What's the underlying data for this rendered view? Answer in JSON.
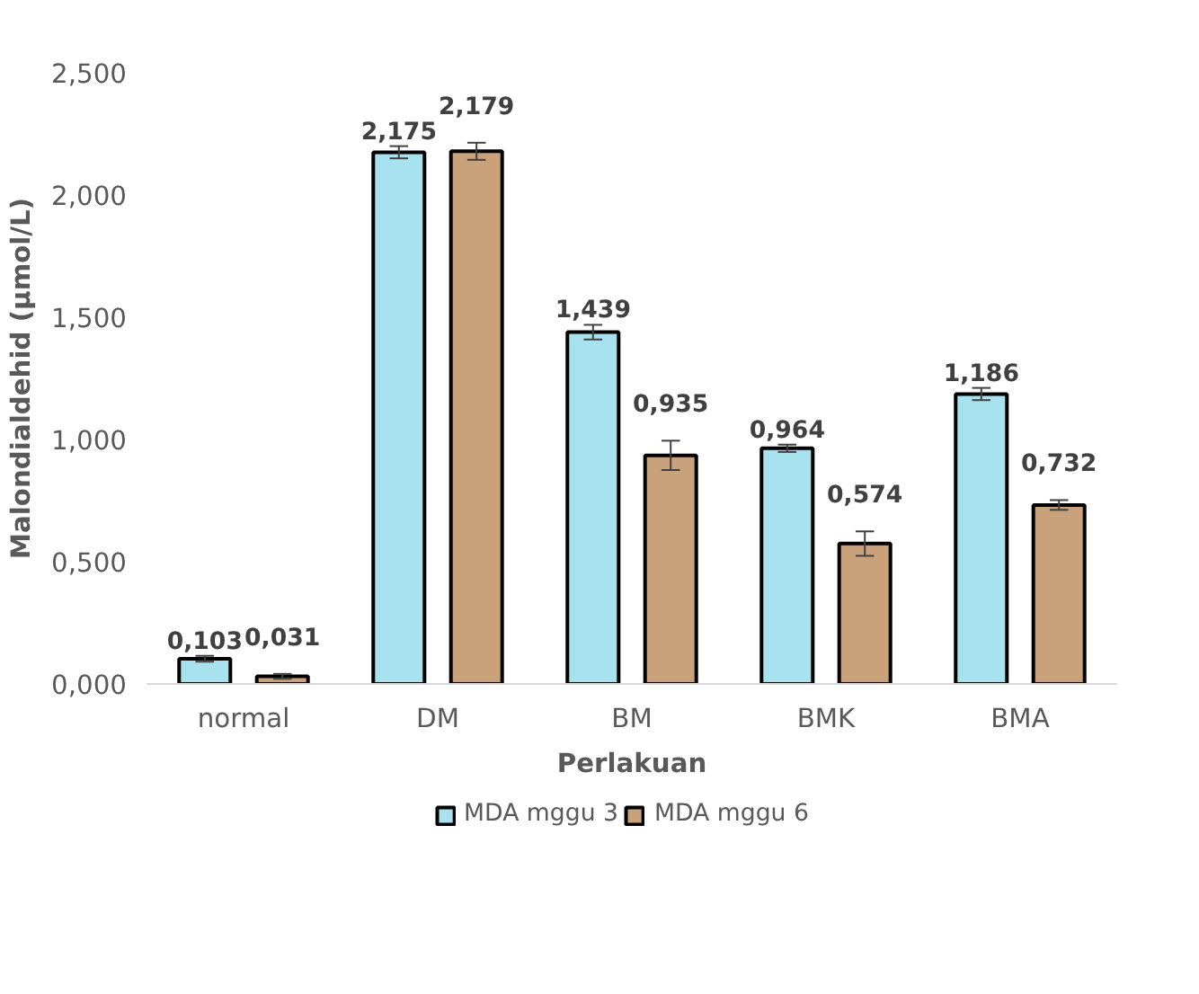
{
  "chart_data": {
    "type": "bar",
    "xlabel": "Perlakuan",
    "ylabel": "Malondialdehid (µmol/L)",
    "categories": [
      "normal",
      "DM",
      "BM",
      "BMK",
      "BMA"
    ],
    "series": [
      {
        "name": "MDA mggu 3",
        "color": "#a8e2ee",
        "values": [
          0.103,
          2.175,
          1.439,
          0.964,
          1.186
        ],
        "errors": [
          0.012,
          0.025,
          0.03,
          0.015,
          0.025
        ],
        "value_labels": [
          "0,103",
          "2,175",
          "1,439",
          "0,964",
          "1,186"
        ]
      },
      {
        "name": "MDA mggu 6",
        "color": "#c9a27c",
        "values": [
          0.031,
          2.179,
          0.935,
          0.574,
          0.732
        ],
        "errors": [
          0.01,
          0.035,
          0.06,
          0.05,
          0.02
        ],
        "value_labels": [
          "0,031",
          "2,179",
          "0,935",
          "0,574",
          "0,732"
        ]
      }
    ],
    "ylim": [
      0,
      2.5
    ],
    "yticks": [
      {
        "value": 0,
        "label": "0,000"
      },
      {
        "value": 0.5,
        "label": "0,500"
      },
      {
        "value": 1,
        "label": "1,000"
      },
      {
        "value": 1.5,
        "label": "1,500"
      },
      {
        "value": 2,
        "label": "2,000"
      },
      {
        "value": 2.5,
        "label": "2,500"
      }
    ],
    "legend": "bottom",
    "grid": false
  }
}
